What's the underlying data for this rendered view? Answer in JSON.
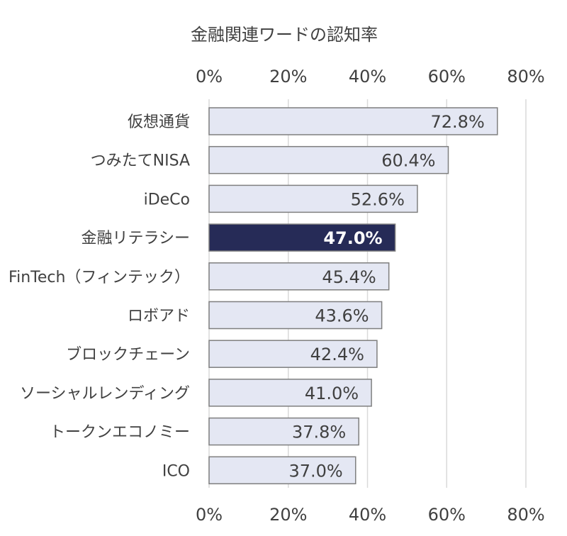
{
  "chart_data": {
    "type": "bar",
    "orientation": "horizontal",
    "title": "金融関連ワードの認知率",
    "categories": [
      "仮想通貨",
      "つみたてNISA",
      "iDeCo",
      "金融リテラシー",
      "FinTech（フィンテック）",
      "ロボアド",
      "ブロックチェーン",
      "ソーシャルレンディング",
      "トークンエコノミー",
      "ICO"
    ],
    "values": [
      72.8,
      60.4,
      52.6,
      47.0,
      45.4,
      43.6,
      42.4,
      41.0,
      37.8,
      37.0
    ],
    "value_labels": [
      "72.8%",
      "60.4%",
      "52.6%",
      "47.0%",
      "45.4%",
      "43.6%",
      "42.4%",
      "41.0%",
      "37.8%",
      "37.0%"
    ],
    "highlight_index": 3,
    "xlim": [
      0,
      80
    ],
    "x_ticks": [
      "0%",
      "20%",
      "40%",
      "60%",
      "80%"
    ],
    "x_tick_values": [
      0,
      20,
      40,
      60,
      80
    ],
    "grid": true,
    "colors": {
      "bar": "#e4e7f3",
      "bar_border": "#7f7f7f",
      "highlight": "#262b57",
      "grid": "#d9d9d9",
      "text": "#404040"
    }
  }
}
